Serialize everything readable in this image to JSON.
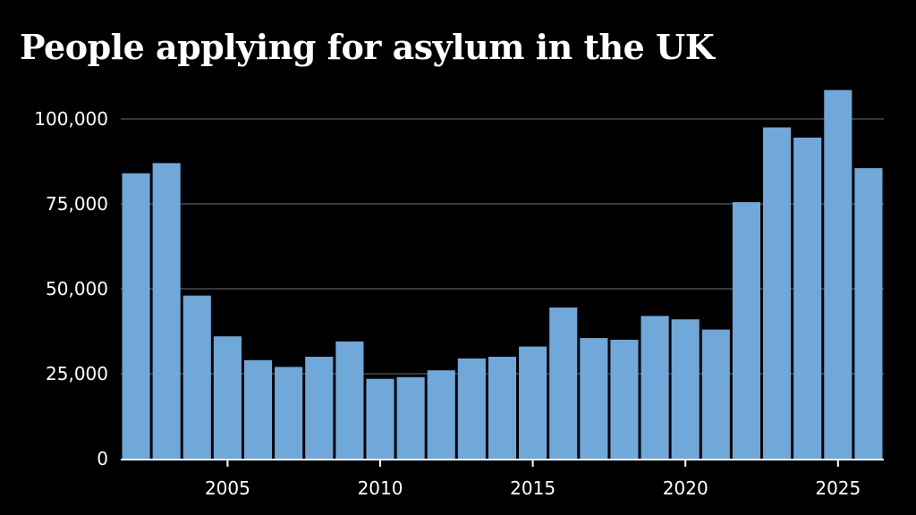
{
  "chart_data": {
    "type": "bar",
    "title": "People applying for asylum in the UK",
    "xlabel": "",
    "ylabel": "",
    "x": [
      2002,
      2003,
      2004,
      2005,
      2006,
      2007,
      2008,
      2009,
      2010,
      2011,
      2012,
      2013,
      2014,
      2015,
      2016,
      2017,
      2018,
      2019,
      2020,
      2021,
      2022,
      2023,
      2024,
      2025,
      2026
    ],
    "values": [
      84000,
      87000,
      48000,
      36000,
      29000,
      27000,
      30000,
      34500,
      23500,
      24000,
      26000,
      29500,
      30000,
      33000,
      44500,
      35500,
      35000,
      42000,
      41000,
      38000,
      75500,
      97500,
      94500,
      108500,
      85500
    ],
    "ylim": [
      0,
      110000
    ],
    "y_ticks": [
      0,
      25000,
      50000,
      75000,
      100000
    ],
    "y_tick_labels": [
      "0",
      "25,000",
      "50,000",
      "75,000",
      "100,000"
    ],
    "x_ticks": [
      2005,
      2010,
      2015,
      2020,
      2025
    ],
    "x_tick_labels": [
      "2005",
      "2010",
      "2015",
      "2020",
      "2025"
    ],
    "grid": true,
    "legend": "none",
    "colors": {
      "bar": "#6fa8d9",
      "grid": "#4a4a4a",
      "axis": "#ffffff",
      "text": "#ffffff",
      "background": "#000000"
    }
  }
}
